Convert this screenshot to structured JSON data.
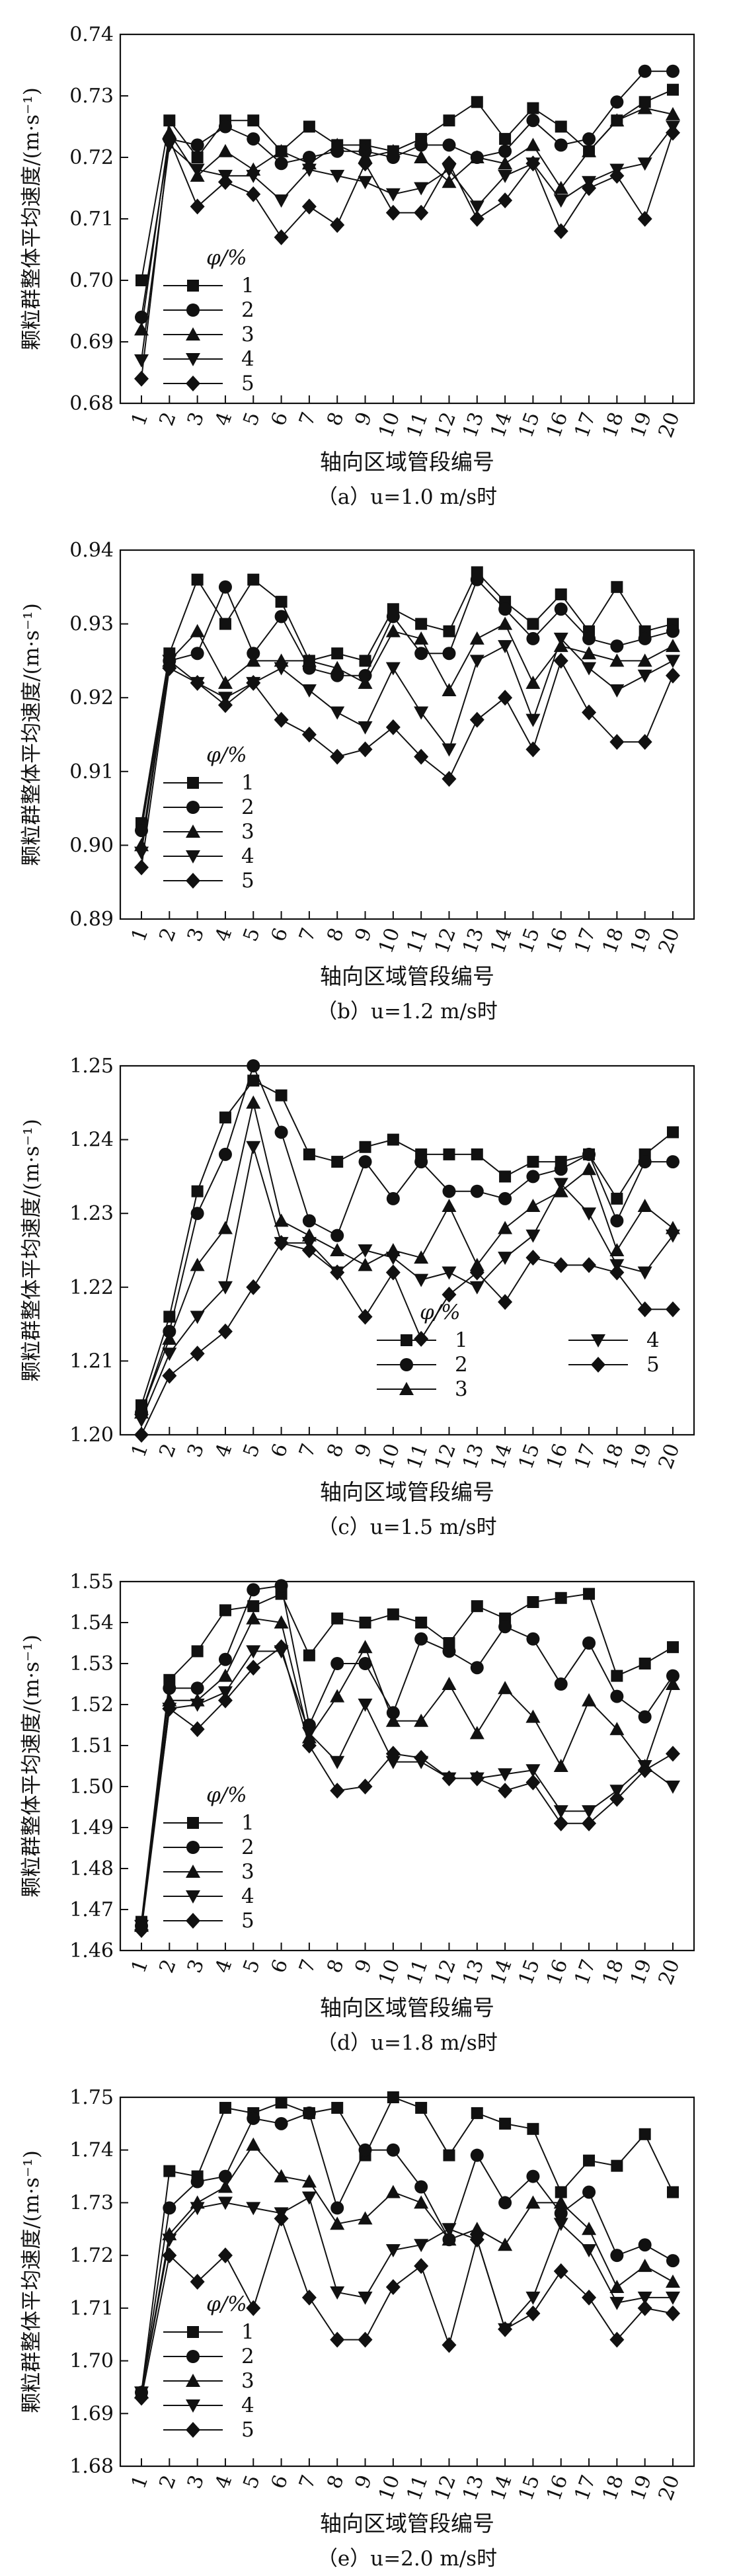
{
  "chart_data": [
    {
      "type": "line",
      "caption": "（a）u=1.0 m/s时",
      "xlabel": "轴向区域管段编号",
      "ylabel": "颗粒群整体平均速度/(m·s⁻¹)",
      "categories": [
        "1",
        "2",
        "3",
        "4",
        "5",
        "6",
        "7",
        "8",
        "9",
        "10",
        "11",
        "12",
        "13",
        "14",
        "15",
        "16",
        "17",
        "18",
        "19",
        "20"
      ],
      "ylim": [
        0.68,
        0.74
      ],
      "yticks": [
        "0.68",
        "0.69",
        "0.70",
        "0.71",
        "0.72",
        "0.73",
        "0.74"
      ],
      "legend_title": "φ/%",
      "legend_position": "lower-left",
      "series": [
        {
          "name": "1",
          "marker": "square",
          "values": [
            0.7,
            0.726,
            0.72,
            0.726,
            0.726,
            0.721,
            0.725,
            0.722,
            0.722,
            0.721,
            0.723,
            0.726,
            0.729,
            0.723,
            0.728,
            0.725,
            0.721,
            0.726,
            0.729,
            0.731
          ]
        },
        {
          "name": "2",
          "marker": "circle",
          "values": [
            0.694,
            0.723,
            0.722,
            0.725,
            0.723,
            0.719,
            0.72,
            0.721,
            0.721,
            0.72,
            0.722,
            0.722,
            0.72,
            0.721,
            0.726,
            0.722,
            0.723,
            0.729,
            0.734,
            0.734
          ]
        },
        {
          "name": "3",
          "marker": "triangle-up",
          "values": [
            0.692,
            0.724,
            0.717,
            0.721,
            0.718,
            0.721,
            0.719,
            0.722,
            0.72,
            0.721,
            0.72,
            0.716,
            0.72,
            0.719,
            0.722,
            0.715,
            0.721,
            0.726,
            0.728,
            0.727
          ]
        },
        {
          "name": "4",
          "marker": "triangle-down",
          "values": [
            0.687,
            0.722,
            0.718,
            0.717,
            0.717,
            0.713,
            0.718,
            0.717,
            0.716,
            0.714,
            0.715,
            0.718,
            0.712,
            0.717,
            0.719,
            0.713,
            0.716,
            0.718,
            0.719,
            0.725
          ]
        },
        {
          "name": "5",
          "marker": "diamond",
          "values": [
            0.684,
            0.723,
            0.712,
            0.716,
            0.714,
            0.707,
            0.712,
            0.709,
            0.719,
            0.711,
            0.711,
            0.719,
            0.71,
            0.713,
            0.719,
            0.708,
            0.715,
            0.717,
            0.71,
            0.724
          ]
        }
      ]
    },
    {
      "type": "line",
      "caption": "（b）u=1.2 m/s时",
      "xlabel": "轴向区域管段编号",
      "ylabel": "颗粒群整体平均速度/(m·s⁻¹)",
      "categories": [
        "1",
        "2",
        "3",
        "4",
        "5",
        "6",
        "7",
        "8",
        "9",
        "10",
        "11",
        "12",
        "13",
        "14",
        "15",
        "16",
        "17",
        "18",
        "19",
        "20"
      ],
      "ylim": [
        0.89,
        0.94
      ],
      "yticks": [
        "0.89",
        "0.90",
        "0.91",
        "0.92",
        "0.93",
        "0.94"
      ],
      "legend_title": "φ/%",
      "legend_position": "lower-left",
      "series": [
        {
          "name": "1",
          "marker": "square",
          "values": [
            0.903,
            0.926,
            0.936,
            0.93,
            0.936,
            0.933,
            0.925,
            0.926,
            0.925,
            0.932,
            0.93,
            0.929,
            0.937,
            0.933,
            0.93,
            0.934,
            0.929,
            0.935,
            0.929,
            0.93
          ]
        },
        {
          "name": "2",
          "marker": "circle",
          "values": [
            0.902,
            0.925,
            0.926,
            0.935,
            0.926,
            0.931,
            0.924,
            0.923,
            0.923,
            0.931,
            0.926,
            0.926,
            0.936,
            0.932,
            0.928,
            0.932,
            0.928,
            0.927,
            0.928,
            0.929
          ]
        },
        {
          "name": "3",
          "marker": "triangle-up",
          "values": [
            0.9,
            0.925,
            0.929,
            0.922,
            0.925,
            0.925,
            0.925,
            0.924,
            0.922,
            0.929,
            0.928,
            0.921,
            0.928,
            0.93,
            0.922,
            0.927,
            0.926,
            0.925,
            0.925,
            0.927
          ]
        },
        {
          "name": "4",
          "marker": "triangle-down",
          "values": [
            0.899,
            0.925,
            0.922,
            0.92,
            0.922,
            0.924,
            0.921,
            0.918,
            0.916,
            0.924,
            0.918,
            0.913,
            0.925,
            0.927,
            0.917,
            0.928,
            0.924,
            0.921,
            0.923,
            0.925
          ]
        },
        {
          "name": "5",
          "marker": "diamond",
          "values": [
            0.897,
            0.924,
            0.922,
            0.919,
            0.922,
            0.917,
            0.915,
            0.912,
            0.913,
            0.916,
            0.912,
            0.909,
            0.917,
            0.92,
            0.913,
            0.925,
            0.918,
            0.914,
            0.914,
            0.923
          ]
        }
      ]
    },
    {
      "type": "line",
      "caption": "（c）u=1.5 m/s时",
      "xlabel": "轴向区域管段编号",
      "ylabel": "颗粒群整体平均速度/(m·s⁻¹)",
      "categories": [
        "1",
        "2",
        "3",
        "4",
        "5",
        "6",
        "7",
        "8",
        "9",
        "10",
        "11",
        "12",
        "13",
        "14",
        "15",
        "16",
        "17",
        "18",
        "19",
        "20"
      ],
      "ylim": [
        1.2,
        1.25
      ],
      "yticks": [
        "1.20",
        "1.21",
        "1.22",
        "1.23",
        "1.24",
        "1.25"
      ],
      "legend_title": "φ/%",
      "legend_position": "lower-right",
      "series": [
        {
          "name": "1",
          "marker": "square",
          "values": [
            1.204,
            1.216,
            1.233,
            1.243,
            1.248,
            1.246,
            1.238,
            1.237,
            1.239,
            1.24,
            1.238,
            1.238,
            1.238,
            1.235,
            1.237,
            1.237,
            1.238,
            1.232,
            1.238,
            1.241
          ]
        },
        {
          "name": "2",
          "marker": "circle",
          "values": [
            1.203,
            1.214,
            1.23,
            1.238,
            1.25,
            1.241,
            1.229,
            1.227,
            1.237,
            1.232,
            1.237,
            1.233,
            1.233,
            1.232,
            1.235,
            1.236,
            1.238,
            1.229,
            1.237,
            1.237
          ]
        },
        {
          "name": "3",
          "marker": "triangle-up",
          "values": [
            1.203,
            1.213,
            1.223,
            1.228,
            1.245,
            1.229,
            1.227,
            1.225,
            1.223,
            1.225,
            1.224,
            1.231,
            1.223,
            1.228,
            1.231,
            1.233,
            1.236,
            1.225,
            1.231,
            1.228
          ]
        },
        {
          "name": "4",
          "marker": "triangle-down",
          "values": [
            1.202,
            1.211,
            1.216,
            1.22,
            1.239,
            1.226,
            1.226,
            1.222,
            1.225,
            1.224,
            1.221,
            1.222,
            1.22,
            1.224,
            1.227,
            1.234,
            1.23,
            1.223,
            1.222,
            1.227
          ]
        },
        {
          "name": "5",
          "marker": "diamond",
          "values": [
            1.2,
            1.208,
            1.211,
            1.214,
            1.22,
            1.226,
            1.225,
            1.222,
            1.216,
            1.222,
            1.213,
            1.219,
            1.222,
            1.218,
            1.224,
            1.223,
            1.223,
            1.222,
            1.217,
            1.217
          ]
        }
      ]
    },
    {
      "type": "line",
      "caption": "（d）u=1.8 m/s时",
      "xlabel": "轴向区域管段编号",
      "ylabel": "颗粒群整体平均速度/(m·s⁻¹)",
      "categories": [
        "1",
        "2",
        "3",
        "4",
        "5",
        "6",
        "7",
        "8",
        "9",
        "10",
        "11",
        "12",
        "13",
        "14",
        "15",
        "16",
        "17",
        "18",
        "19",
        "20"
      ],
      "ylim": [
        1.46,
        1.55
      ],
      "yticks": [
        "1.46",
        "1.47",
        "1.48",
        "1.49",
        "1.50",
        "1.51",
        "1.52",
        "1.53",
        "1.54",
        "1.55"
      ],
      "legend_title": "φ/%",
      "legend_position": "lower-left",
      "series": [
        {
          "name": "1",
          "marker": "square",
          "values": [
            1.467,
            1.526,
            1.533,
            1.543,
            1.544,
            1.547,
            1.532,
            1.541,
            1.54,
            1.542,
            1.54,
            1.535,
            1.544,
            1.541,
            1.545,
            1.546,
            1.547,
            1.527,
            1.53,
            1.534
          ]
        },
        {
          "name": "2",
          "marker": "circle",
          "values": [
            1.466,
            1.524,
            1.524,
            1.531,
            1.548,
            1.549,
            1.515,
            1.53,
            1.53,
            1.518,
            1.536,
            1.533,
            1.529,
            1.539,
            1.536,
            1.525,
            1.535,
            1.522,
            1.517,
            1.527
          ]
        },
        {
          "name": "3",
          "marker": "triangle-up",
          "values": [
            1.466,
            1.521,
            1.521,
            1.527,
            1.541,
            1.54,
            1.512,
            1.522,
            1.534,
            1.516,
            1.516,
            1.525,
            1.513,
            1.524,
            1.517,
            1.505,
            1.521,
            1.514,
            1.505,
            1.525
          ]
        },
        {
          "name": "4",
          "marker": "triangle-down",
          "values": [
            1.466,
            1.519,
            1.52,
            1.523,
            1.533,
            1.533,
            1.513,
            1.506,
            1.52,
            1.506,
            1.506,
            1.502,
            1.502,
            1.503,
            1.504,
            1.494,
            1.494,
            1.499,
            1.505,
            1.5
          ]
        },
        {
          "name": "5",
          "marker": "diamond",
          "values": [
            1.465,
            1.519,
            1.514,
            1.521,
            1.529,
            1.534,
            1.51,
            1.499,
            1.5,
            1.508,
            1.507,
            1.502,
            1.502,
            1.499,
            1.501,
            1.491,
            1.491,
            1.497,
            1.504,
            1.508
          ]
        }
      ]
    },
    {
      "type": "line",
      "caption": "（e）u=2.0 m/s时",
      "xlabel": "轴向区域管段编号",
      "ylabel": "颗粒群整体平均速度/(m·s⁻¹)",
      "categories": [
        "1",
        "2",
        "3",
        "4",
        "5",
        "6",
        "7",
        "8",
        "9",
        "10",
        "11",
        "12",
        "13",
        "14",
        "15",
        "16",
        "17",
        "18",
        "19",
        "20"
      ],
      "ylim": [
        1.68,
        1.75
      ],
      "yticks": [
        "1.68",
        "1.69",
        "1.70",
        "1.71",
        "1.72",
        "1.73",
        "1.74",
        "1.75"
      ],
      "legend_title": "φ/%",
      "legend_position": "lower-left",
      "series": [
        {
          "name": "1",
          "marker": "square",
          "values": [
            1.694,
            1.736,
            1.735,
            1.748,
            1.747,
            1.749,
            1.747,
            1.748,
            1.739,
            1.75,
            1.748,
            1.739,
            1.747,
            1.745,
            1.744,
            1.732,
            1.738,
            1.737,
            1.743,
            1.732
          ]
        },
        {
          "name": "2",
          "marker": "circle",
          "values": [
            1.694,
            1.729,
            1.734,
            1.735,
            1.746,
            1.745,
            1.747,
            1.729,
            1.74,
            1.74,
            1.733,
            1.723,
            1.739,
            1.73,
            1.735,
            1.728,
            1.732,
            1.72,
            1.722,
            1.719
          ]
        },
        {
          "name": "3",
          "marker": "triangle-up",
          "values": [
            1.694,
            1.724,
            1.73,
            1.733,
            1.741,
            1.735,
            1.734,
            1.726,
            1.727,
            1.732,
            1.73,
            1.723,
            1.725,
            1.722,
            1.73,
            1.73,
            1.725,
            1.714,
            1.718,
            1.715
          ]
        },
        {
          "name": "4",
          "marker": "triangle-down",
          "values": [
            1.694,
            1.723,
            1.729,
            1.73,
            1.729,
            1.728,
            1.731,
            1.713,
            1.712,
            1.721,
            1.722,
            1.725,
            1.723,
            1.706,
            1.712,
            1.726,
            1.721,
            1.711,
            1.712,
            1.712
          ]
        },
        {
          "name": "5",
          "marker": "diamond",
          "values": [
            1.693,
            1.72,
            1.715,
            1.72,
            1.71,
            1.727,
            1.712,
            1.704,
            1.704,
            1.714,
            1.718,
            1.703,
            1.723,
            1.706,
            1.709,
            1.717,
            1.712,
            1.704,
            1.71,
            1.709
          ]
        }
      ]
    }
  ]
}
